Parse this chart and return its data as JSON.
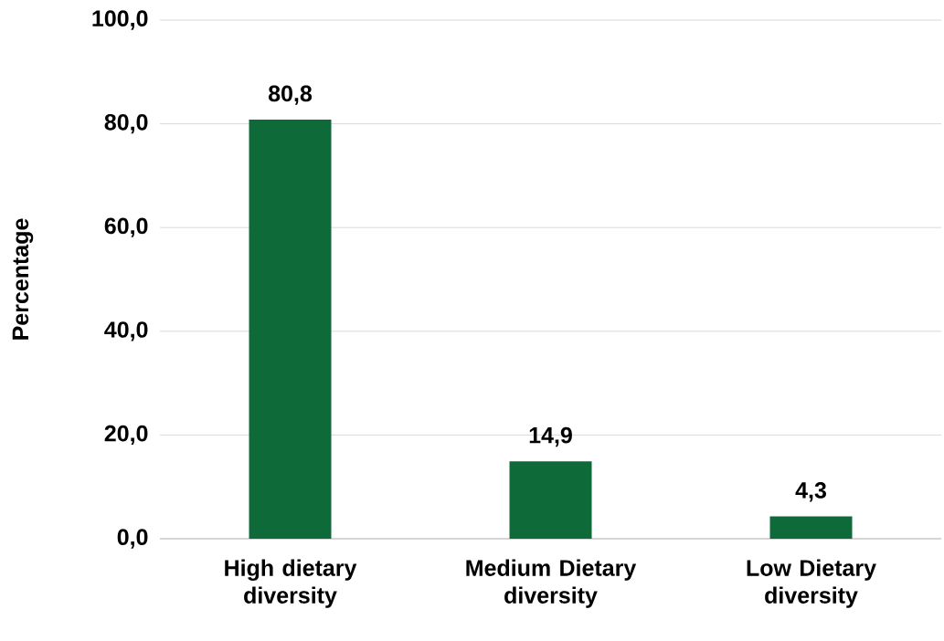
{
  "chart_data": {
    "type": "bar",
    "ylabel": "Percentage",
    "categories": [
      "High dietary diversity",
      "Medium Dietary diversity",
      "Low Dietary diversity"
    ],
    "values": [
      80.8,
      14.9,
      4.3
    ],
    "value_labels": [
      "80,8",
      "14,9",
      "4,3"
    ],
    "color": "#0f6a3a",
    "ylim": [
      0,
      100
    ],
    "yticks": [
      {
        "value": 0,
        "label": "0,0"
      },
      {
        "value": 20,
        "label": "20,0"
      },
      {
        "value": 40,
        "label": "40,0"
      },
      {
        "value": 60,
        "label": "60,0"
      },
      {
        "value": 80,
        "label": "80,0"
      },
      {
        "value": 100,
        "label": "100,0"
      }
    ],
    "grid": "y"
  }
}
